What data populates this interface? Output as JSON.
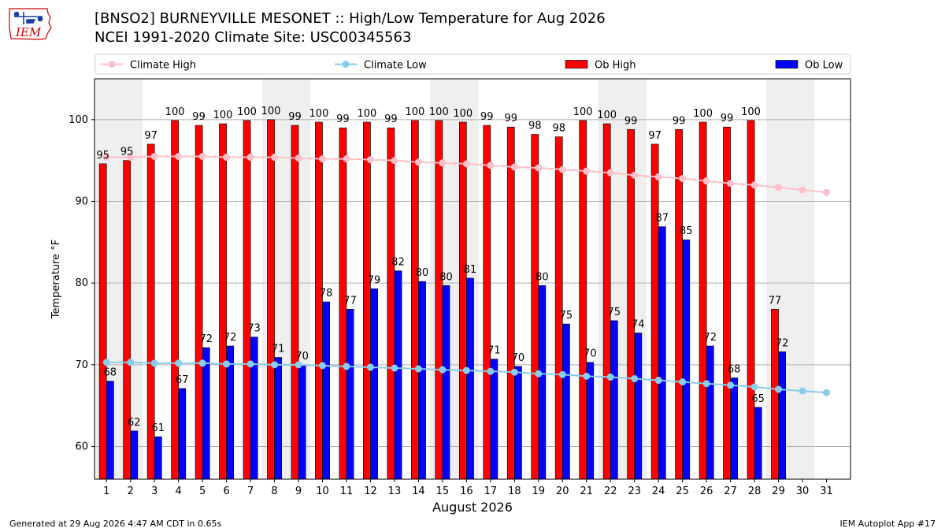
{
  "header": {
    "title": "[BNSO2] BURNEYVILLE MESONET :: High/Low Temperature for Aug 2026",
    "subtitle": "NCEI 1991-2020 Climate Site: USC00345563",
    "logo_text": "IEM"
  },
  "footer": {
    "generated": "Generated at 29 Aug 2026 4:47 AM CDT in 0.65s",
    "app": "IEM Autoplot App #17"
  },
  "colors": {
    "ob_high": "#ff0000",
    "ob_low": "#0000ff",
    "climate_high": "#ffc0cb",
    "climate_low": "#87ceeb",
    "weekend_band": "#efefef"
  },
  "chart_data": {
    "type": "bar",
    "xlabel": "August 2026",
    "ylabel": "Temperature °F",
    "ylim": [
      56,
      105
    ],
    "yticks": [
      60,
      70,
      80,
      90,
      100
    ],
    "grid": true,
    "legend_position": "top",
    "categories": [
      "1",
      "2",
      "3",
      "4",
      "5",
      "6",
      "7",
      "8",
      "9",
      "10",
      "11",
      "12",
      "13",
      "14",
      "15",
      "16",
      "17",
      "18",
      "19",
      "20",
      "21",
      "22",
      "23",
      "24",
      "25",
      "26",
      "27",
      "28",
      "29",
      "30",
      "31"
    ],
    "shaded_days": [
      1,
      8,
      15,
      22,
      29
    ],
    "series": [
      {
        "name": "Climate High",
        "kind": "line",
        "values": [
          95.4,
          95.4,
          95.5,
          95.5,
          95.5,
          95.4,
          95.4,
          95.4,
          95.3,
          95.2,
          95.2,
          95.1,
          95.0,
          94.8,
          94.7,
          94.6,
          94.4,
          94.2,
          94.1,
          93.9,
          93.7,
          93.5,
          93.2,
          93.0,
          92.8,
          92.5,
          92.2,
          92.0,
          91.7,
          91.4,
          91.1
        ]
      },
      {
        "name": "Climate Low",
        "kind": "line",
        "values": [
          70.3,
          70.3,
          70.2,
          70.2,
          70.2,
          70.1,
          70.1,
          70.0,
          70.0,
          69.9,
          69.8,
          69.7,
          69.6,
          69.5,
          69.4,
          69.3,
          69.2,
          69.1,
          68.9,
          68.8,
          68.6,
          68.5,
          68.3,
          68.1,
          67.9,
          67.7,
          67.5,
          67.3,
          67.0,
          66.8,
          66.6
        ]
      },
      {
        "name": "Ob High",
        "kind": "bar",
        "values": [
          95,
          95,
          97,
          100,
          99,
          100,
          100,
          100,
          99,
          100,
          99,
          100,
          99,
          100,
          100,
          100,
          99,
          99,
          98,
          98,
          100,
          100,
          99,
          97,
          99,
          100,
          99,
          100,
          77,
          null,
          null
        ],
        "plot_values": [
          94.6,
          95.0,
          97.0,
          99.9,
          99.3,
          99.5,
          99.9,
          100.0,
          99.3,
          99.7,
          99.0,
          99.7,
          99.0,
          99.9,
          99.9,
          99.7,
          99.3,
          99.1,
          98.2,
          97.9,
          99.9,
          99.5,
          98.8,
          97.0,
          98.8,
          99.7,
          99.1,
          99.9,
          76.8,
          null,
          null
        ]
      },
      {
        "name": "Ob Low",
        "kind": "bar",
        "values": [
          68,
          62,
          61,
          67,
          72,
          72,
          73,
          71,
          70,
          78,
          77,
          79,
          82,
          80,
          80,
          81,
          71,
          70,
          80,
          75,
          70,
          75,
          74,
          87,
          85,
          72,
          68,
          65,
          72,
          null,
          null
        ],
        "plot_values": [
          68.0,
          61.9,
          61.2,
          67.1,
          72.1,
          72.3,
          73.4,
          70.9,
          70.0,
          77.7,
          76.8,
          79.3,
          81.5,
          80.2,
          79.7,
          80.6,
          70.7,
          69.8,
          79.7,
          75.0,
          70.3,
          75.4,
          73.9,
          86.9,
          85.3,
          72.3,
          68.4,
          64.8,
          71.6,
          null,
          null
        ]
      }
    ]
  }
}
